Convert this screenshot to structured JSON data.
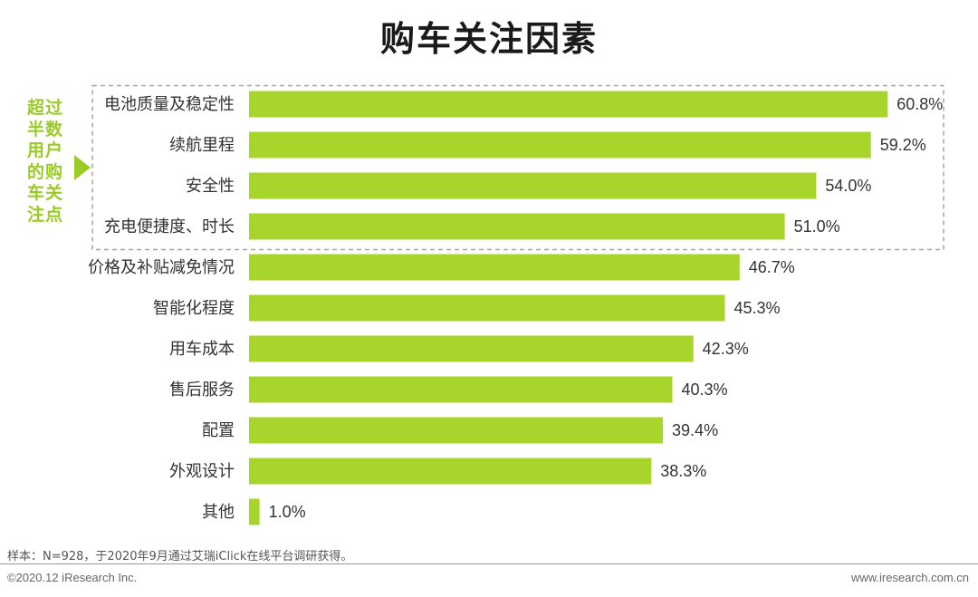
{
  "chart_data": {
    "type": "bar",
    "orientation": "horizontal",
    "title": "购车关注因素",
    "categories": [
      "电池质量及稳定性",
      "续航里程",
      "安全性",
      "充电便捷度、时长",
      "价格及补贴减免情况",
      "智能化程度",
      "用车成本",
      "售后服务",
      "配置",
      "外观设计",
      "其他"
    ],
    "values": [
      60.8,
      59.2,
      54.0,
      51.0,
      46.7,
      45.3,
      42.3,
      40.3,
      39.4,
      38.3,
      1.0
    ],
    "value_labels": [
      "60.8%",
      "59.2%",
      "54.0%",
      "51.0%",
      "46.7%",
      "45.3%",
      "42.3%",
      "40.3%",
      "39.4%",
      "38.3%",
      "1.0%"
    ],
    "unit": "%",
    "xlim": [
      0,
      70
    ],
    "grid": false,
    "bar_color": "#a8d52b",
    "highlight": {
      "count": 4,
      "text": "超过半数用户的购车关注点",
      "color": "#9acb27"
    }
  },
  "footer": {
    "source_note": "样本：N=928，于2020年9月通过艾瑞iClick在线平台调研获得。",
    "copyright": "©2020.12 iResearch Inc.",
    "website": "www.iresearch.com.cn"
  }
}
